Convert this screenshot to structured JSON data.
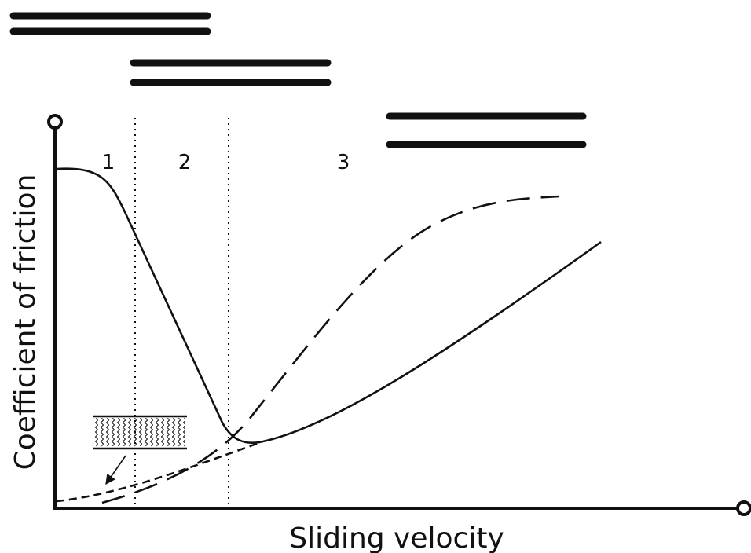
{
  "diagram": {
    "regions": [
      "1",
      "2",
      "3"
    ],
    "x_axis_label": "Sliding velocity",
    "y_axis_label": "Coefficient of friction"
  }
}
